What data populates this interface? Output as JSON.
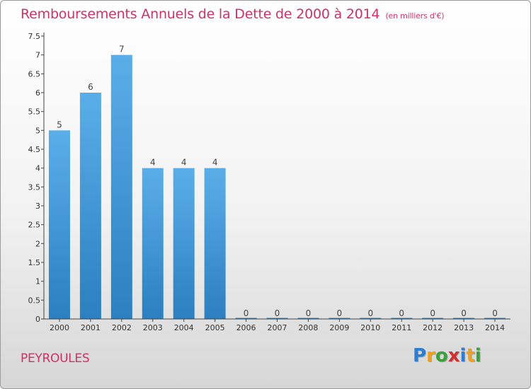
{
  "title": "Remboursements Annuels de la Dette de 2000 à 2014",
  "subtitle": "(en milliers d'€)",
  "commune": "PEYROULES",
  "logo": {
    "text": "Proxiti",
    "letters": [
      {
        "char": "P",
        "color": "#2a7fd4"
      },
      {
        "char": "r",
        "color": "#f0a020"
      },
      {
        "char": "o",
        "color": "#3aa03a"
      },
      {
        "char": "x",
        "color": "#d03030"
      },
      {
        "char": "i",
        "color": "#2a7fd4"
      },
      {
        "char": "t",
        "color": "#f0a020"
      },
      {
        "char": "i",
        "color": "#3aa03a"
      }
    ]
  },
  "colors": {
    "bar_top": "#5aaee8",
    "bar_bottom": "#2c7fc0",
    "title": "#cc3366"
  },
  "chart_data": {
    "type": "bar",
    "categories": [
      "2000",
      "2001",
      "2002",
      "2003",
      "2004",
      "2005",
      "2006",
      "2007",
      "2008",
      "2009",
      "2010",
      "2011",
      "2012",
      "2013",
      "2014"
    ],
    "values": [
      5,
      6,
      7,
      4,
      4,
      4,
      0,
      0,
      0,
      0,
      0,
      0,
      0,
      0,
      0
    ],
    "data_labels": [
      "5",
      "6",
      "7",
      "4",
      "4",
      "4",
      "0",
      "0",
      "0",
      "0",
      "0",
      "0",
      "0",
      "0",
      "0"
    ],
    "ylim": [
      0,
      7.5
    ],
    "yticks": [
      0,
      0.5,
      1,
      1.5,
      2,
      2.5,
      3,
      3.5,
      4,
      4.5,
      5,
      5.5,
      6,
      6.5,
      7,
      7.5
    ],
    "ytick_labels": [
      "0",
      "0.5",
      "1",
      "1.5",
      "2",
      "2.5",
      "3",
      "3.5",
      "4",
      "4.5",
      "5",
      "5.5",
      "6",
      "6.5",
      "7",
      "7.5"
    ],
    "xlabel": "",
    "ylabel": "",
    "grid": false,
    "legend": "none"
  }
}
